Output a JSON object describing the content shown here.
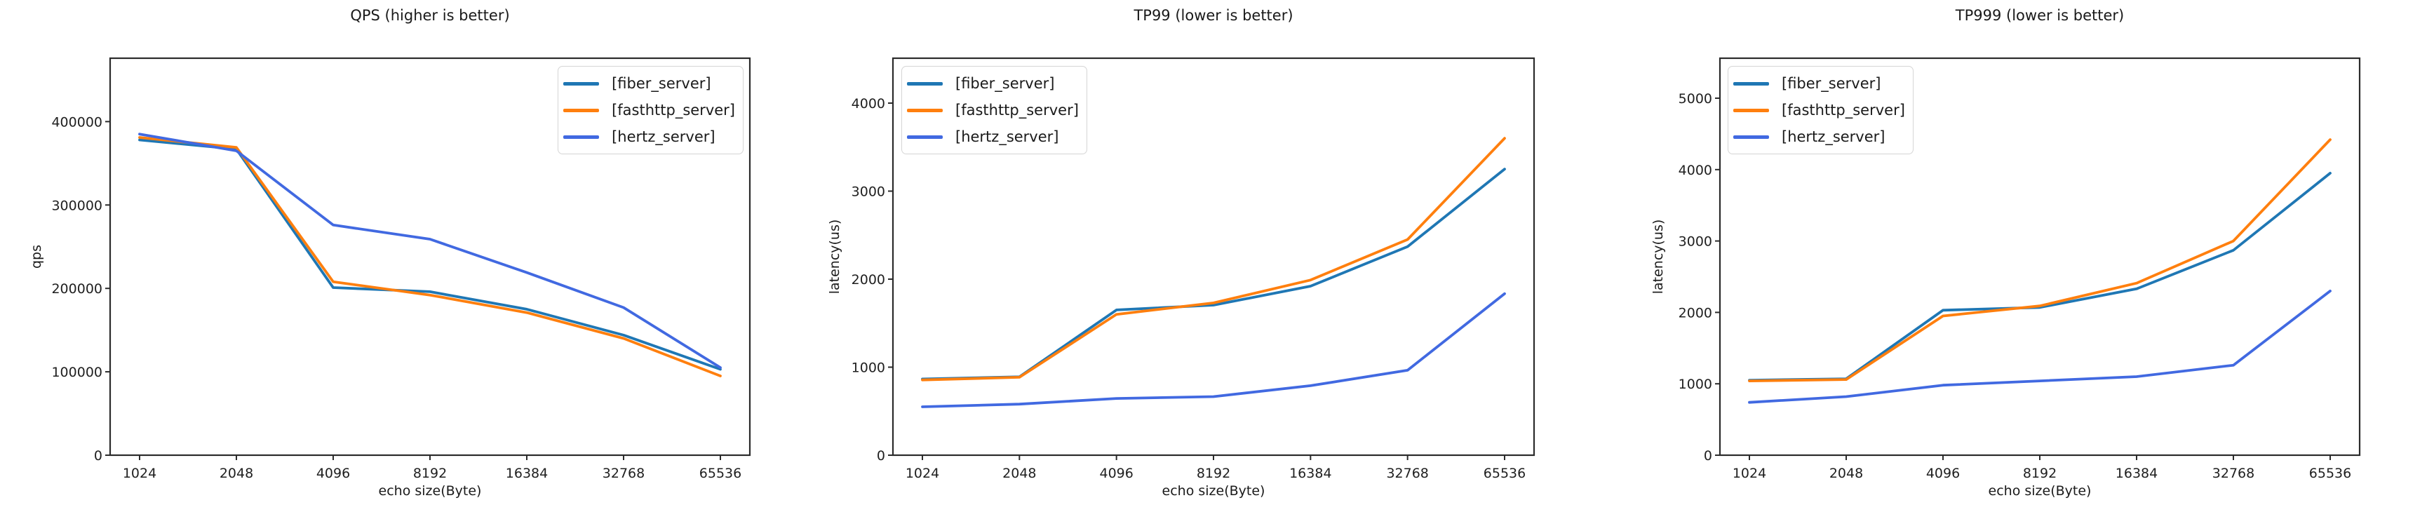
{
  "figure": {
    "background_color": "#ffffff",
    "text_color": "#1a1a1a",
    "axes_color": "#2b2b2b"
  },
  "chart_data": [
    {
      "type": "line",
      "title": "QPS (higher is better)",
      "xlabel": "echo size(Byte)",
      "ylabel": "qps",
      "categories": [
        "1024",
        "2048",
        "4096",
        "8192",
        "16384",
        "32768",
        "65536"
      ],
      "ylim": [
        0,
        476000
      ],
      "yticks": [
        0,
        100000,
        200000,
        300000,
        400000
      ],
      "grid": false,
      "legend_position": "upper right",
      "series": [
        {
          "name": "[fiber_server]",
          "color": "#1f77b4",
          "values": [
            378000,
            367000,
            201000,
            196000,
            175000,
            144000,
            103000
          ]
        },
        {
          "name": "[fasthttp_server]",
          "color": "#ff7f0e",
          "values": [
            381000,
            369000,
            208000,
            192000,
            171000,
            140000,
            95000
          ]
        },
        {
          "name": "[hertz_server]",
          "color": "#4169e1",
          "values": [
            385000,
            365000,
            276000,
            259000,
            219000,
            177000,
            105000
          ]
        }
      ]
    },
    {
      "type": "line",
      "title": "TP99 (lower is better)",
      "xlabel": "echo size(Byte)",
      "ylabel": "latency(us)",
      "categories": [
        "1024",
        "2048",
        "4096",
        "8192",
        "16384",
        "32768",
        "65536"
      ],
      "ylim": [
        0,
        4510
      ],
      "yticks": [
        0,
        1000,
        2000,
        3000,
        4000
      ],
      "grid": false,
      "legend_position": "upper left",
      "series": [
        {
          "name": "[fiber_server]",
          "color": "#1f77b4",
          "values": [
            865,
            890,
            1650,
            1705,
            1920,
            2370,
            3250
          ]
        },
        {
          "name": "[fasthttp_server]",
          "color": "#ff7f0e",
          "values": [
            855,
            885,
            1600,
            1730,
            1990,
            2450,
            3600
          ]
        },
        {
          "name": "[hertz_server]",
          "color": "#4169e1",
          "values": [
            550,
            580,
            645,
            665,
            790,
            965,
            1835
          ]
        }
      ]
    },
    {
      "type": "line",
      "title": "TP999 (lower is better)",
      "xlabel": "echo size(Byte)",
      "ylabel": "latency(us)",
      "categories": [
        "1024",
        "2048",
        "4096",
        "8192",
        "16384",
        "32768",
        "65536"
      ],
      "ylim": [
        0,
        5560
      ],
      "yticks": [
        0,
        1000,
        2000,
        3000,
        4000,
        5000
      ],
      "grid": false,
      "legend_position": "upper left",
      "series": [
        {
          "name": "[fiber_server]",
          "color": "#1f77b4",
          "values": [
            1050,
            1070,
            2030,
            2070,
            2330,
            2870,
            3950
          ]
        },
        {
          "name": "[fasthttp_server]",
          "color": "#ff7f0e",
          "values": [
            1040,
            1060,
            1950,
            2090,
            2410,
            3000,
            4420
          ]
        },
        {
          "name": "[hertz_server]",
          "color": "#4169e1",
          "values": [
            740,
            820,
            980,
            1040,
            1100,
            1260,
            2300
          ]
        }
      ]
    }
  ]
}
